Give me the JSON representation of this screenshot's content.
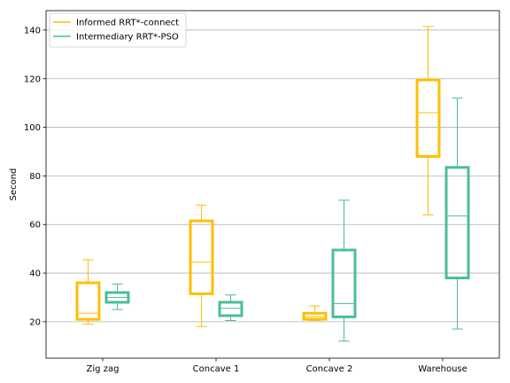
{
  "chart_data": {
    "type": "boxplot",
    "title": "",
    "xlabel": "",
    "ylabel": "Second",
    "categories": [
      "Zig zag",
      "Concave 1",
      "Concave 2",
      "Warehouse"
    ],
    "ylim": [
      5,
      148
    ],
    "yticks": [
      20,
      40,
      60,
      80,
      100,
      120,
      140
    ],
    "grid": "horizontal",
    "legend_position": "top-left",
    "series": [
      {
        "name": "Informed RRT*-connect",
        "color": "#FFBF00",
        "boxes": [
          {
            "whisker_low": 19,
            "q1": 21,
            "median": 23.5,
            "q3": 36,
            "whisker_high": 45.5
          },
          {
            "whisker_low": 18,
            "q1": 31.5,
            "median": 44.5,
            "q3": 61.5,
            "whisker_high": 68
          },
          {
            "whisker_low": 20.5,
            "q1": 21,
            "median": 22,
            "q3": 23.5,
            "whisker_high": 26.5
          },
          {
            "whisker_low": 64,
            "q1": 88,
            "median": 106,
            "q3": 119.5,
            "whisker_high": 141.5
          }
        ]
      },
      {
        "name": "Intermediary RRT*-PSO",
        "color": "#4BBE96",
        "boxes": [
          {
            "whisker_low": 25,
            "q1": 28,
            "median": 30,
            "q3": 32,
            "whisker_high": 35.5
          },
          {
            "whisker_low": 20.5,
            "q1": 22.5,
            "median": 25.5,
            "q3": 28,
            "whisker_high": 31
          },
          {
            "whisker_low": 12,
            "q1": 22,
            "median": 27.5,
            "q3": 49.5,
            "whisker_high": 70
          },
          {
            "whisker_low": 17,
            "q1": 38,
            "median": 63.5,
            "q3": 83.5,
            "whisker_high": 112
          }
        ]
      }
    ]
  }
}
